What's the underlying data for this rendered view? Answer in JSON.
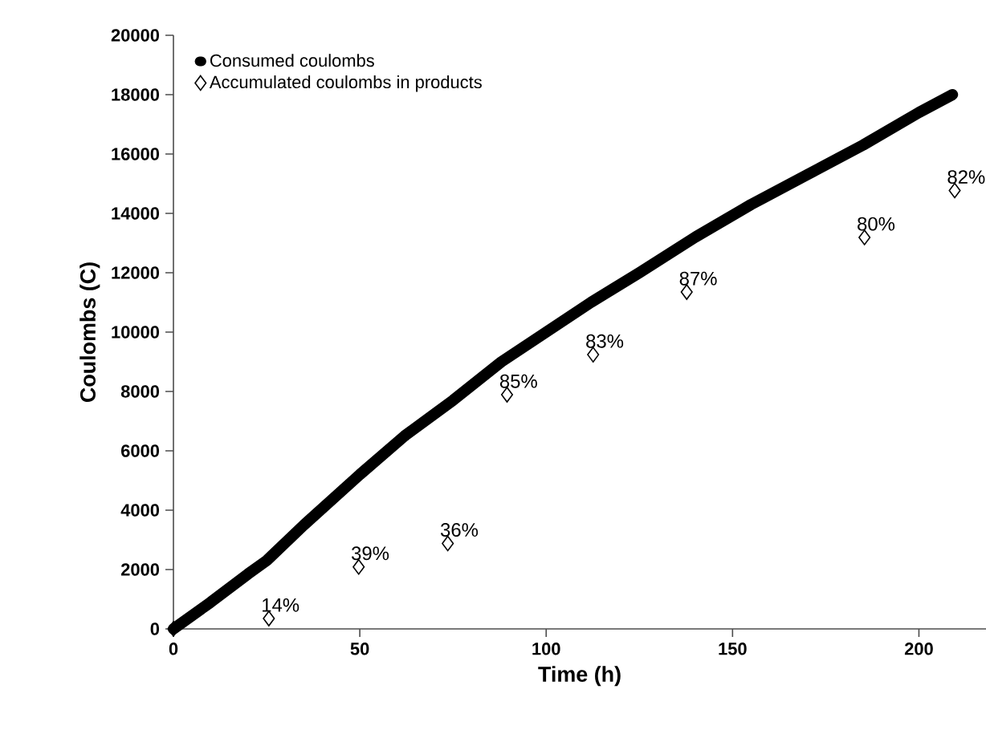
{
  "chart_data": {
    "type": "line",
    "xlabel": "Time (h)",
    "ylabel": "Coulombs (C)",
    "xlim": [
      0,
      218
    ],
    "ylim": [
      0,
      20000
    ],
    "xticks": [
      0,
      50,
      100,
      150,
      200
    ],
    "yticks": [
      0,
      2000,
      4000,
      6000,
      8000,
      10000,
      12000,
      14000,
      16000,
      18000,
      20000
    ],
    "legend": "top left",
    "grid": false,
    "series": [
      {
        "name": "Consumed coulombs",
        "color": "#000000",
        "x": [
          0,
          10,
          20,
          25,
          35,
          50,
          62,
          75,
          88,
          100,
          112,
          125,
          140,
          155,
          170,
          185,
          200,
          209
        ],
        "values": [
          0,
          900,
          1850,
          2300,
          3500,
          5200,
          6500,
          7700,
          9000,
          10000,
          11000,
          12000,
          13200,
          14300,
          15300,
          16300,
          17400,
          18000
        ]
      },
      {
        "name": "Accumulated coulombs in products",
        "type": "scatter",
        "marker": "diamond",
        "color": "#000000",
        "x": [
          0,
          25.6,
          49.7,
          73.6,
          89.5,
          112.6,
          137.7,
          185.4,
          209.6
        ],
        "values": [
          0,
          350,
          2090,
          2880,
          7890,
          9240,
          11350,
          13190,
          14770
        ]
      }
    ],
    "annotations": [
      {
        "text": "14%",
        "x": 25.6,
        "y": 350
      },
      {
        "text": "39%",
        "x": 49.7,
        "y": 2090
      },
      {
        "text": "36%",
        "x": 73.6,
        "y": 2880
      },
      {
        "text": "85%",
        "x": 89.5,
        "y": 7890
      },
      {
        "text": "83%",
        "x": 112.6,
        "y": 9240
      },
      {
        "text": "87%",
        "x": 137.7,
        "y": 11350
      },
      {
        "text": "80%",
        "x": 185.4,
        "y": 13190
      },
      {
        "text": "82%",
        "x": 209.6,
        "y": 14770
      }
    ]
  }
}
